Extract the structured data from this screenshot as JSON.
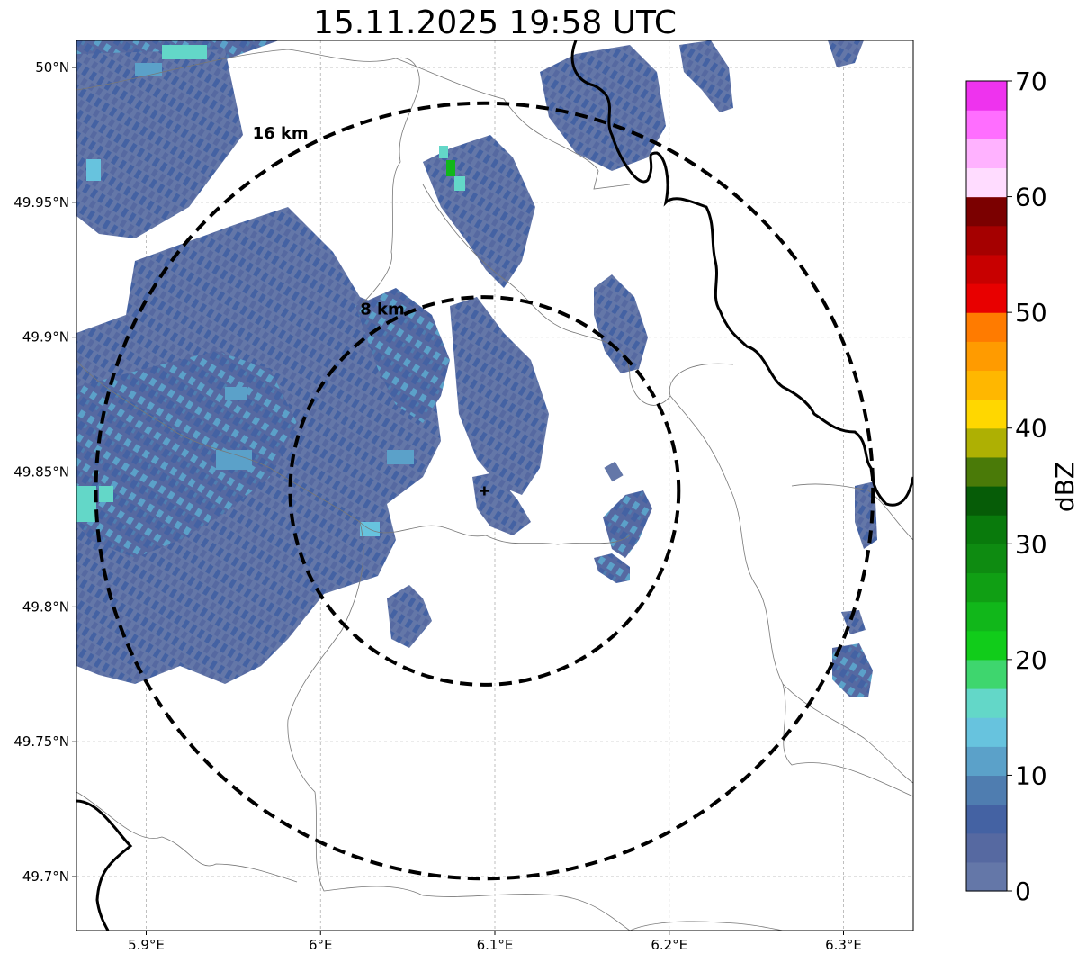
{
  "title": "15.11.2025 19:58 UTC",
  "map": {
    "lon_range": [
      5.86,
      6.34
    ],
    "lat_range": [
      49.68,
      50.01
    ],
    "lon_ticks": [
      {
        "value": 5.9,
        "label": "5.9°E"
      },
      {
        "value": 6.0,
        "label": "6°E"
      },
      {
        "value": 6.1,
        "label": "6.1°E"
      },
      {
        "value": 6.2,
        "label": "6.2°E"
      },
      {
        "value": 6.3,
        "label": "6.3°E"
      }
    ],
    "lat_ticks": [
      {
        "value": 50.0,
        "label": "50°N"
      },
      {
        "value": 49.95,
        "label": "49.95°N"
      },
      {
        "value": 49.9,
        "label": "49.9°N"
      },
      {
        "value": 49.85,
        "label": "49.85°N"
      },
      {
        "value": 49.8,
        "label": "49.8°N"
      },
      {
        "value": 49.75,
        "label": "49.75°N"
      },
      {
        "value": 49.7,
        "label": "49.7°N"
      }
    ],
    "radar_site": {
      "lon": 6.094,
      "lat": 49.843
    },
    "rings": [
      {
        "radius_km": 8,
        "label": "8 km"
      },
      {
        "radius_km": 16,
        "label": "16 km"
      }
    ],
    "gridlines": true
  },
  "colorbar": {
    "label": "dBZ",
    "min": 0,
    "max": 70,
    "ticks": [
      {
        "value": 70,
        "label": "70"
      },
      {
        "value": 60,
        "label": "60"
      },
      {
        "value": 50,
        "label": "50"
      },
      {
        "value": 40,
        "label": "40"
      },
      {
        "value": 30,
        "label": "30"
      },
      {
        "value": 20,
        "label": "20"
      },
      {
        "value": 10,
        "label": "10"
      },
      {
        "value": 0,
        "label": "0"
      }
    ],
    "colors": [
      "#6477a8",
      "#5669a1",
      "#4462a3",
      "#4f7db0",
      "#5ba1c9",
      "#67c3de",
      "#63d7c8",
      "#3ed66e",
      "#11cc1a",
      "#11b71a",
      "#109f14",
      "#0e8b11",
      "#097a0c",
      "#065c07",
      "#4a7a08",
      "#aeb003",
      "#ffd700",
      "#ffb700",
      "#ff9b00",
      "#ff7b00",
      "#e80000",
      "#c80000",
      "#a50000",
      "#7b0000",
      "#ffdcff",
      "#ffb2ff",
      "#ff6eff",
      "#ee33ee"
    ]
  },
  "chart_data": {
    "type": "heatmap",
    "title": "15.11.2025 19:58 UTC",
    "xlabel": "",
    "ylabel": "",
    "xlim": [
      5.86,
      6.34
    ],
    "ylim": [
      49.68,
      50.01
    ],
    "colorbar_label": "dBZ",
    "colorbar_range": [
      0,
      70
    ],
    "echo_regions": [
      {
        "lon": [
          5.86,
          5.98
        ],
        "lat": [
          49.92,
          50.01
        ],
        "dbz": [
          0,
          15
        ]
      },
      {
        "lon": [
          5.86,
          6.06
        ],
        "lat": [
          49.77,
          49.93
        ],
        "dbz": [
          0,
          18
        ]
      },
      {
        "lon": [
          6.06,
          6.12
        ],
        "lat": [
          49.9,
          49.98
        ],
        "dbz": [
          0,
          25
        ]
      },
      {
        "lon": [
          6.07,
          6.13
        ],
        "lat": [
          49.83,
          49.92
        ],
        "dbz": [
          0,
          8
        ]
      },
      {
        "lon": [
          6.13,
          6.2
        ],
        "lat": [
          49.95,
          50.0
        ],
        "dbz": [
          0,
          10
        ]
      },
      {
        "lon": [
          6.16,
          6.19
        ],
        "lat": [
          49.87,
          49.92
        ],
        "dbz": [
          0,
          8
        ]
      },
      {
        "lon": [
          6.15,
          6.18
        ],
        "lat": [
          49.8,
          49.84
        ],
        "dbz": [
          0,
          10
        ]
      },
      {
        "lon": [
          6.29,
          6.31
        ],
        "lat": [
          49.77,
          49.8
        ],
        "dbz": [
          0,
          10
        ]
      },
      {
        "lon": [
          6.05,
          6.07
        ],
        "lat": [
          49.79,
          49.81
        ],
        "dbz": [
          0,
          6
        ]
      }
    ]
  }
}
